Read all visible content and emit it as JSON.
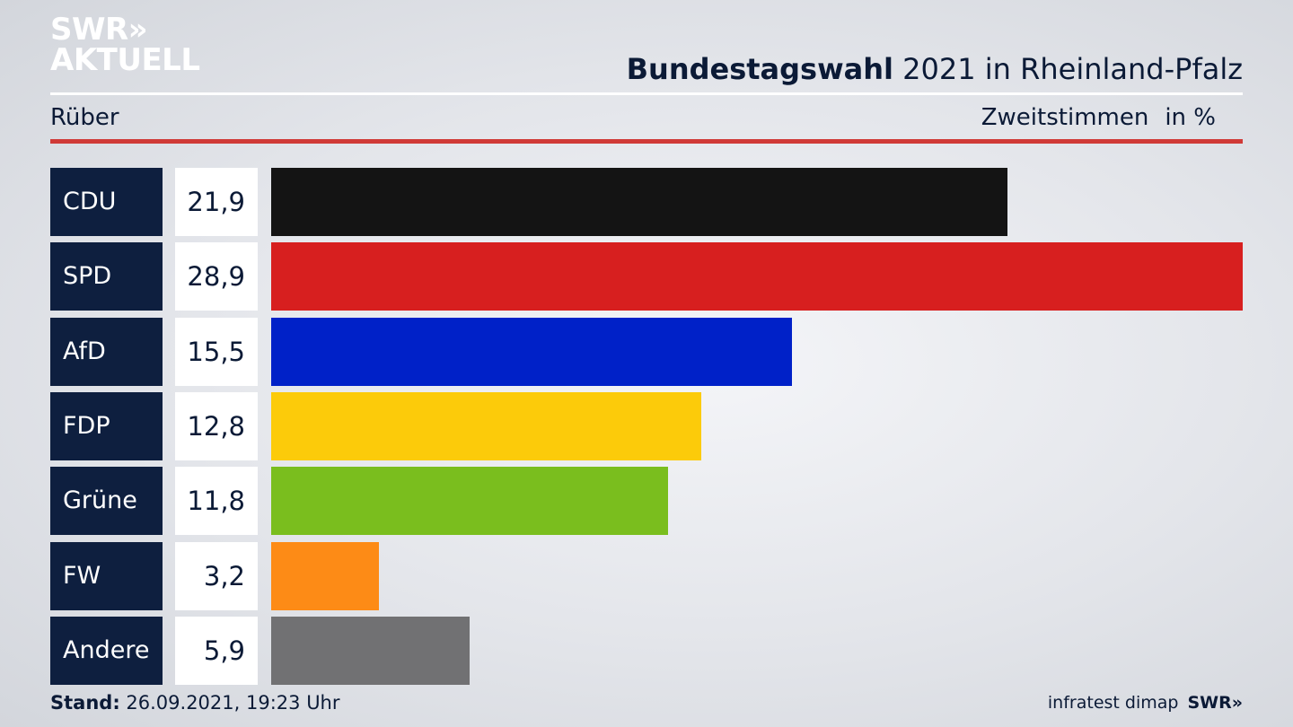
{
  "header": {
    "logo_line1": "SWR»",
    "logo_line2": "AKTUELL",
    "title_bold": "Bundestagswahl",
    "title_rest": "2021 in Rheinland-Pfalz",
    "subtitle": "Rüber",
    "measure": "Zweitstimmen",
    "unit": "in %"
  },
  "footer": {
    "stand_label": "Stand:",
    "stand_value": "26.09.2021, 19:23 Uhr",
    "source": "infratest dimap",
    "brand": "SWR»"
  },
  "colors": {
    "navy": "#0e1f3f",
    "red_rule": "#d03a37"
  },
  "chart_data": {
    "type": "bar",
    "orientation": "horizontal",
    "categories": [
      "CDU",
      "SPD",
      "AfD",
      "FDP",
      "Grüne",
      "FW",
      "Andere"
    ],
    "values": [
      21.9,
      28.9,
      15.5,
      12.8,
      11.8,
      3.2,
      5.9
    ],
    "value_labels": [
      "21,9",
      "28,9",
      "15,5",
      "12,8",
      "11,8",
      "3,2",
      "5,9"
    ],
    "colors": [
      "#141414",
      "#d71f1f",
      "#0021c8",
      "#fccb0a",
      "#7abe1e",
      "#fd8b16",
      "#717173"
    ],
    "xlim": [
      0,
      28.9
    ],
    "grid": false,
    "legend": "none"
  }
}
